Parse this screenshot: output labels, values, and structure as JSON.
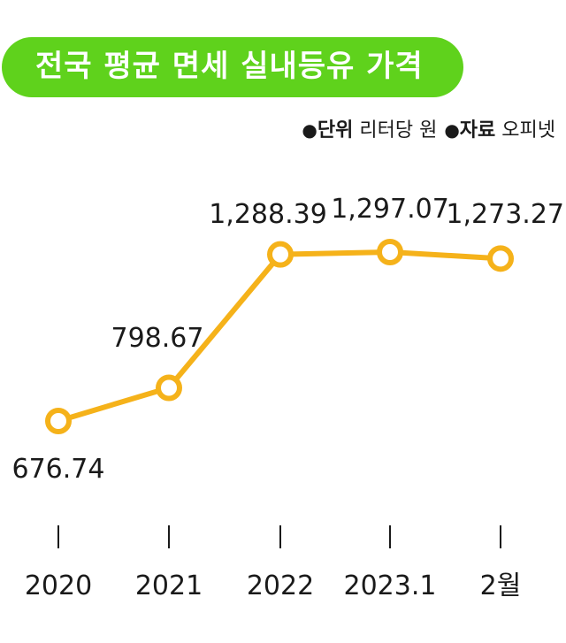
{
  "title": "전국 평균 면세 실내등유 가격",
  "meta": {
    "unit_label": "단위",
    "unit_value": "리터당 원",
    "source_label": "자료",
    "source_value": "오피넷"
  },
  "colors": {
    "title_bg": "#5fd21c",
    "line": "#f5b21a",
    "marker_fill": "#ffffff"
  },
  "chart_data": {
    "type": "line",
    "categories": [
      "2020",
      "2021",
      "2022",
      "2023.1",
      "2월"
    ],
    "values": [
      676.74,
      798.67,
      1288.39,
      1297.07,
      1273.27
    ],
    "value_labels": [
      "676.74",
      "798.67",
      "1,288.39",
      "1,297.07",
      "1,273.27"
    ],
    "title": "전국 평균 면세 실내등유 가격",
    "xlabel": "",
    "ylabel": "",
    "unit": "리터당 원",
    "source": "오피넷",
    "grid": false,
    "legend": "none"
  }
}
